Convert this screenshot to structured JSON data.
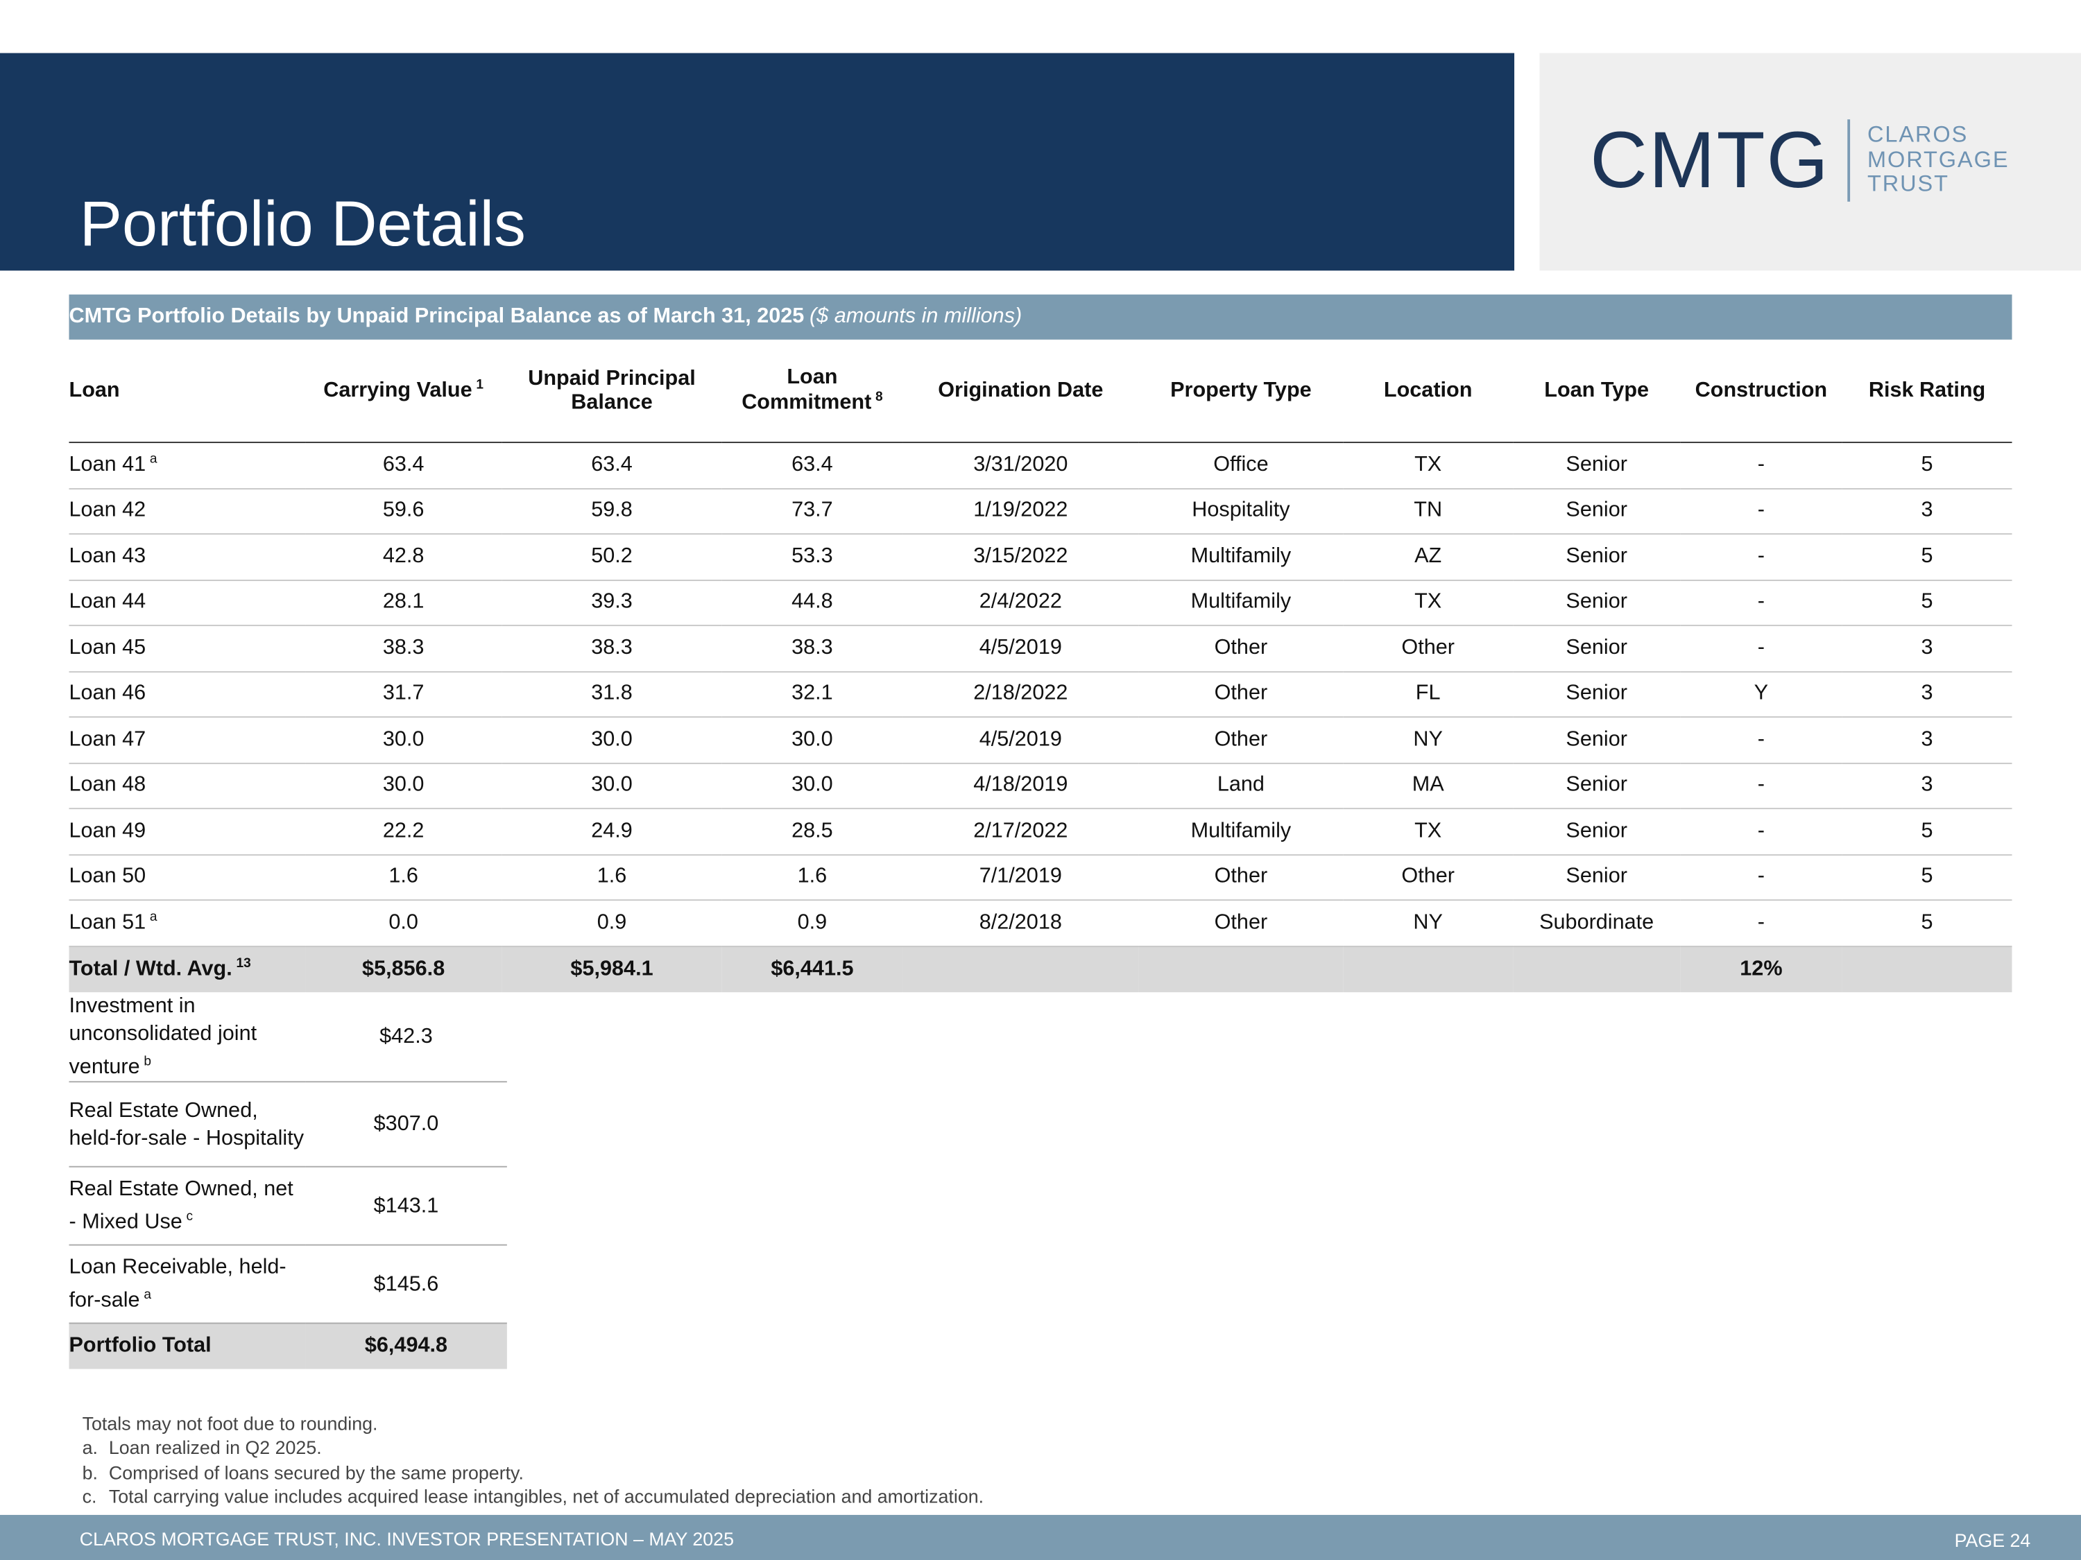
{
  "header": {
    "title": "Portfolio Details"
  },
  "logo": {
    "mark": "CMTG",
    "lines": [
      "CLAROS",
      "MORTGAGE",
      "TRUST"
    ]
  },
  "table": {
    "title": "CMTG Portfolio Details by Unpaid Principal Balance as of March 31, 2025",
    "subtitle": "($ amounts in millions)",
    "columns": [
      {
        "label": "Loan",
        "note": null
      },
      {
        "label": "Carrying Value",
        "note": "1"
      },
      {
        "label": "Unpaid Principal Balance",
        "note": null
      },
      {
        "label": "Loan Commitment",
        "note": "8"
      },
      {
        "label": "Origination Date",
        "note": null
      },
      {
        "label": "Property Type",
        "note": null
      },
      {
        "label": "Location",
        "note": null
      },
      {
        "label": "Loan Type",
        "note": null
      },
      {
        "label": "Construction",
        "note": null
      },
      {
        "label": "Risk Rating",
        "note": null
      }
    ],
    "rows": [
      {
        "label": "Loan 41",
        "note": "a",
        "cells": [
          "63.4",
          "63.4",
          "63.4",
          "3/31/2020",
          "Office",
          "TX",
          "Senior",
          "-",
          "5"
        ]
      },
      {
        "label": "Loan 42",
        "note": null,
        "cells": [
          "59.6",
          "59.8",
          "73.7",
          "1/19/2022",
          "Hospitality",
          "TN",
          "Senior",
          "-",
          "3"
        ]
      },
      {
        "label": "Loan 43",
        "note": null,
        "cells": [
          "42.8",
          "50.2",
          "53.3",
          "3/15/2022",
          "Multifamily",
          "AZ",
          "Senior",
          "-",
          "5"
        ]
      },
      {
        "label": "Loan 44",
        "note": null,
        "cells": [
          "28.1",
          "39.3",
          "44.8",
          "2/4/2022",
          "Multifamily",
          "TX",
          "Senior",
          "-",
          "5"
        ]
      },
      {
        "label": "Loan 45",
        "note": null,
        "cells": [
          "38.3",
          "38.3",
          "38.3",
          "4/5/2019",
          "Other",
          "Other",
          "Senior",
          "-",
          "3"
        ]
      },
      {
        "label": "Loan 46",
        "note": null,
        "cells": [
          "31.7",
          "31.8",
          "32.1",
          "2/18/2022",
          "Other",
          "FL",
          "Senior",
          "Y",
          "3"
        ]
      },
      {
        "label": "Loan 47",
        "note": null,
        "cells": [
          "30.0",
          "30.0",
          "30.0",
          "4/5/2019",
          "Other",
          "NY",
          "Senior",
          "-",
          "3"
        ]
      },
      {
        "label": "Loan 48",
        "note": null,
        "cells": [
          "30.0",
          "30.0",
          "30.0",
          "4/18/2019",
          "Land",
          "MA",
          "Senior",
          "-",
          "3"
        ]
      },
      {
        "label": "Loan 49",
        "note": null,
        "cells": [
          "22.2",
          "24.9",
          "28.5",
          "2/17/2022",
          "Multifamily",
          "TX",
          "Senior",
          "-",
          "5"
        ]
      },
      {
        "label": "Loan 50",
        "note": null,
        "cells": [
          "1.6",
          "1.6",
          "1.6",
          "7/1/2019",
          "Other",
          "Other",
          "Senior",
          "-",
          "5"
        ]
      },
      {
        "label": "Loan 51",
        "note": "a",
        "cells": [
          "0.0",
          "0.9",
          "0.9",
          "8/2/2018",
          "Other",
          "NY",
          "Subordinate",
          "-",
          "5"
        ]
      }
    ],
    "total": {
      "label": "Total / Wtd. Avg.",
      "note": "13",
      "cells": [
        "$5,856.8",
        "$5,984.1",
        "$6,441.5",
        null,
        null,
        null,
        null,
        "12%",
        null
      ]
    },
    "other_rows": [
      {
        "label": "Investment in unconsolidated joint venture",
        "note": "b",
        "value": "$42.3"
      },
      {
        "label": "Real Estate Owned, held-for-sale - Hospitality",
        "note": null,
        "value": "$307.0"
      },
      {
        "label": "Real Estate Owned, net - Mixed Use",
        "note": "c",
        "value": "$143.1"
      },
      {
        "label": "Loan Receivable, held-for-sale",
        "note": "a",
        "value": "$145.6"
      }
    ],
    "portfolio_total": {
      "label": "Portfolio Total",
      "value": "$6,494.8"
    }
  },
  "notes": {
    "intro": "Totals may not foot due to rounding.",
    "items": [
      {
        "marker": "a.",
        "text": "Loan realized in Q2 2025."
      },
      {
        "marker": "b.",
        "text": "Comprised of loans secured by the same property."
      },
      {
        "marker": "c.",
        "text": "Total carrying value includes acquired lease intangibles, net of accumulated depreciation and amortization."
      }
    ]
  },
  "footer": {
    "left": "CLAROS MORTGAGE TRUST, INC. INVESTOR PRESENTATION – MAY 2025",
    "page": "PAGE 24"
  }
}
